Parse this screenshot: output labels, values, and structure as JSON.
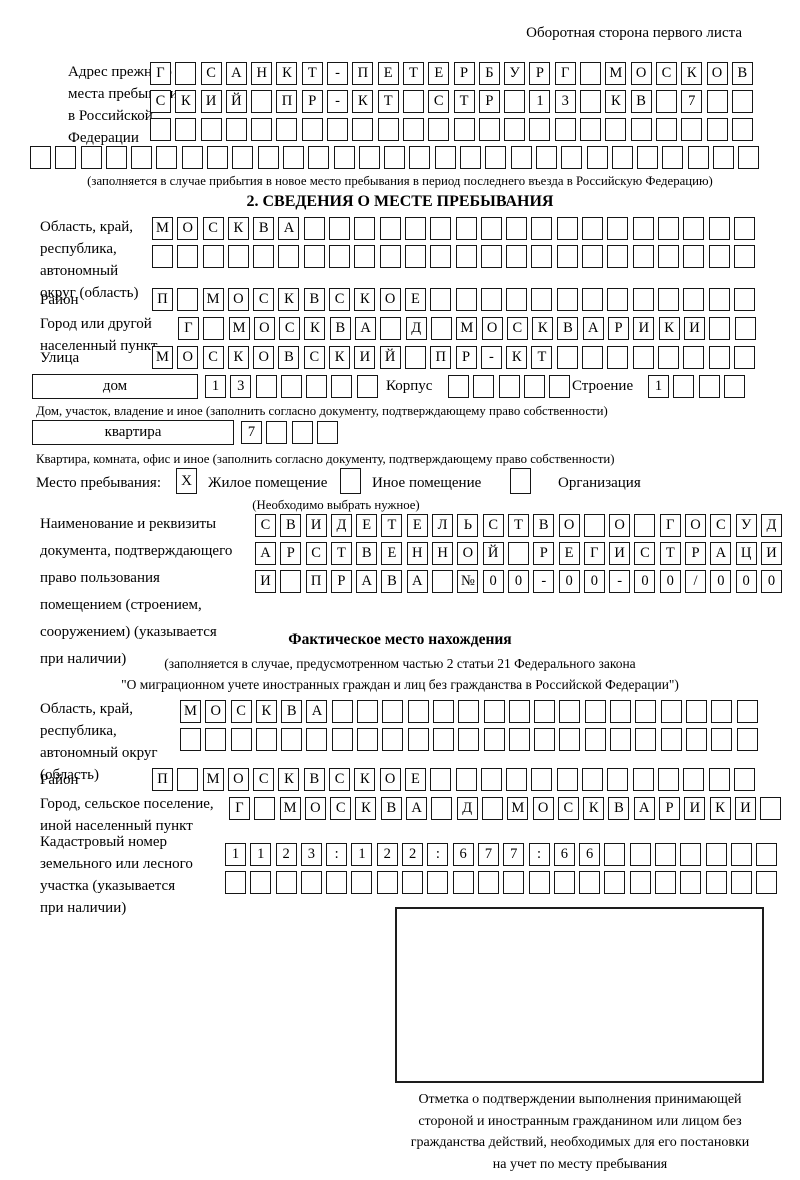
{
  "page": {
    "header_note": "Оборотная сторона первого листа"
  },
  "prev_address": {
    "label_lines": [
      "Адрес прежнего",
      "места пребывания",
      "в Российской",
      "Федерации"
    ],
    "rows": [
      {
        "len": 24,
        "text": "Г САНКТ-ПЕТЕРБУРГ МОСКОВ"
      },
      {
        "len": 24,
        "text": "СКИЙ ПР-КТ СТР 13 КВ 7"
      },
      {
        "len": 24,
        "text": ""
      },
      {
        "len": 29,
        "text": ""
      }
    ],
    "note": "(заполняется в случае прибытия в новое место пребывания в период последнего въезда в Российскую Федерацию)"
  },
  "section2": {
    "title": "2. СВЕДЕНИЯ О МЕСТЕ ПРЕБЫВАНИЯ",
    "region": {
      "label_lines": [
        "Область, край,",
        "республика,",
        "автономный",
        "округ (область)"
      ],
      "rows": [
        {
          "len": 24,
          "text": "МОСКВА"
        },
        {
          "len": 24,
          "text": ""
        }
      ]
    },
    "district": {
      "label": "Район",
      "row": {
        "len": 24,
        "text": "П МОСКВСКОЕ"
      }
    },
    "city": {
      "label_lines": [
        "Город или другой",
        "населенный пункт"
      ],
      "row": {
        "len": 23,
        "text": "Г МОСКВА Д МОСКВАРИКИ"
      }
    },
    "street": {
      "label": "Улица",
      "row": {
        "len": 24,
        "text": "МОСКОВСКИЙ ПР-КТ"
      }
    },
    "house": {
      "box_label": "дом",
      "cells": {
        "len": 7,
        "text": "13"
      },
      "korpus_label": "Корпус",
      "korpus_cells": {
        "len": 5,
        "text": ""
      },
      "stroenie_label": "Строение",
      "stroenie_cells": {
        "len": 4,
        "text": "1"
      },
      "note": "Дом, участок, владение и иное (заполнить согласно документу, подтверждающему право собственности)"
    },
    "apartment": {
      "box_label": "квартира",
      "cells": {
        "len": 4,
        "text": "7"
      },
      "note": "Квартира, комната, офис и иное (заполнить согласно документу, подтверждающему право собственности)"
    },
    "stay_type": {
      "label": "Место пребывания:",
      "options": [
        {
          "label": "Жилое помещение",
          "mark": "X"
        },
        {
          "label": "Иное помещение",
          "mark": ""
        },
        {
          "label": "Организация",
          "mark": ""
        }
      ],
      "note": "(Необходимо выбрать нужное)"
    },
    "document": {
      "label_lines": [
        "Наименование и реквизиты",
        "документа, подтверждающего",
        "право пользования",
        "помещением (строением,",
        "сооружением) (указывается",
        "при наличии)"
      ],
      "rows": [
        {
          "len": 21,
          "text": "СВИДЕТЕЛЬСТВО О ГОСУД"
        },
        {
          "len": 21,
          "text": "АРСТВЕННОЙ РЕГИСТРАЦИ"
        },
        {
          "len": 21,
          "text": "И ПРАВА №00-00-00/000"
        }
      ]
    }
  },
  "actual_location": {
    "title": "Фактическое место нахождения",
    "note_line1": "(заполняется в случае, предусмотренном частью 2 статьи 21 Федерального закона",
    "note_line2": "\"О миграционном учете иностранных граждан и лиц без гражданства в Российской Федерации\")",
    "region": {
      "label_lines": [
        "Область, край,",
        "республика,",
        "автономный округ",
        "(область)"
      ],
      "rows": [
        {
          "len": 23,
          "text": "МОСКВА"
        },
        {
          "len": 23,
          "text": ""
        }
      ]
    },
    "district": {
      "label": "Район",
      "row": {
        "len": 24,
        "text": "П МОСКВСКОЕ"
      }
    },
    "city": {
      "label_lines": [
        "Город, сельское поселение,",
        "иной населенный пункт"
      ],
      "row": {
        "len": 22,
        "text": "Г МОСКВА Д МОСКВАРИКИ"
      }
    },
    "cadastral": {
      "label_lines": [
        "Кадастровый номер",
        "земельного или лесного",
        "участка (указывается",
        "при наличии)"
      ],
      "rows": [
        {
          "len": 22,
          "text": "1123:122:677:66"
        },
        {
          "len": 22,
          "text": ""
        }
      ]
    }
  },
  "confirmation": {
    "caption_lines": [
      "Отметка о подтверждении выполнения принимающей",
      "стороной и иностранным гражданином или лицом без",
      "гражданства действий, необходимых для его постановки",
      "на учет по месту пребывания"
    ]
  }
}
